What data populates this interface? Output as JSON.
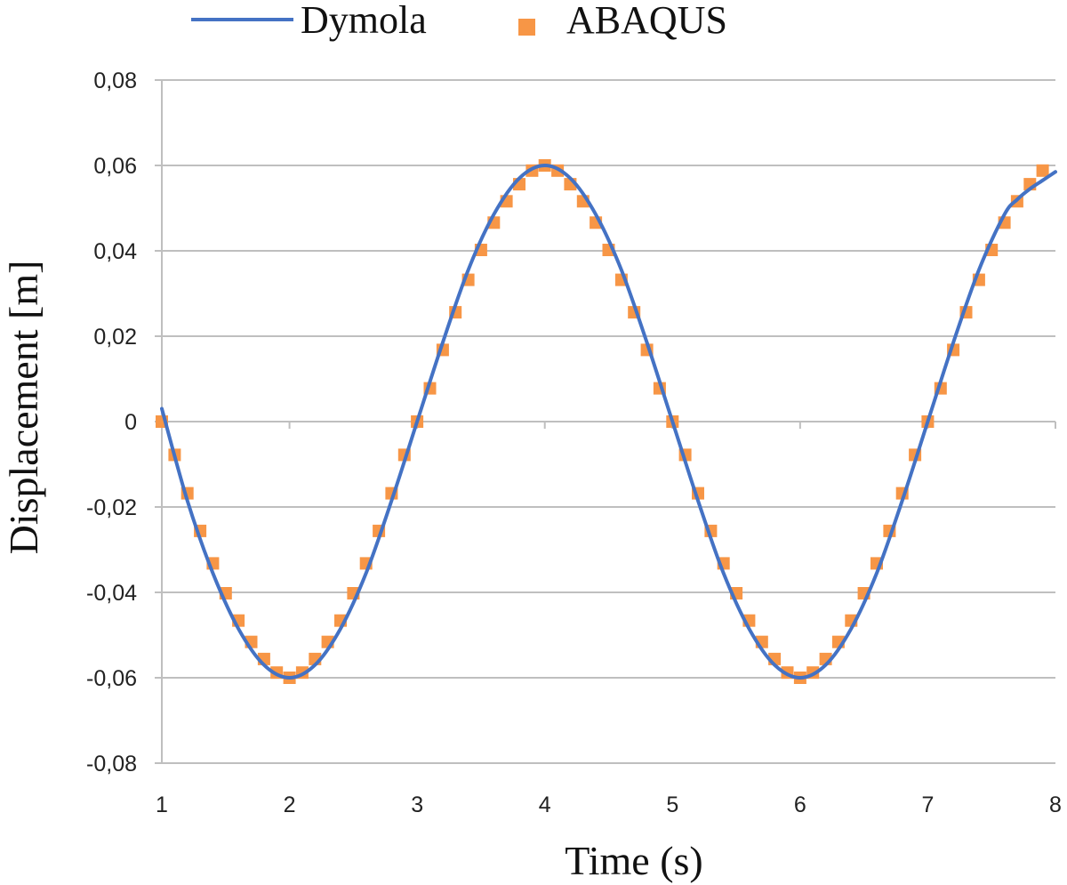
{
  "chart_data": {
    "type": "line",
    "title": "",
    "xlabel": "Time (s)",
    "ylabel": "Displacement [m]",
    "xlim": [
      1,
      8
    ],
    "ylim": [
      -0.08,
      0.08
    ],
    "x_ticks": [
      1,
      2,
      3,
      4,
      5,
      6,
      7,
      8
    ],
    "x_tick_labels": [
      "1",
      "2",
      "3",
      "4",
      "5",
      "6",
      "7",
      "8"
    ],
    "y_ticks": [
      0.08,
      0.06,
      0.04,
      0.02,
      0,
      -0.02,
      -0.04,
      -0.06,
      -0.08
    ],
    "y_tick_labels": [
      "0,08",
      "0,06",
      "0,04",
      "0,02",
      "0",
      "-0,02",
      "-0,04",
      "-0,06",
      "-0,08"
    ],
    "grid": "horizontal",
    "legend_position": "top",
    "series": [
      {
        "name": "Dymola",
        "kind": "line",
        "color": "#4472C4",
        "x": [
          1.0,
          1.2,
          1.4,
          1.6,
          1.8,
          2.0,
          2.2,
          2.4,
          2.6,
          2.8,
          3.0,
          3.2,
          3.4,
          3.6,
          3.8,
          4.0,
          4.2,
          4.4,
          4.6,
          4.8,
          5.0,
          5.2,
          5.4,
          5.6,
          5.8,
          6.0,
          6.2,
          6.4,
          6.6,
          6.8,
          7.0,
          7.2,
          7.4,
          7.6,
          7.7,
          7.8,
          7.9,
          8.0
        ],
        "y": [
          0.003,
          -0.0185,
          -0.0355,
          -0.0485,
          -0.057,
          -0.06,
          -0.057,
          -0.0485,
          -0.0355,
          -0.0185,
          0.0,
          0.0185,
          0.0355,
          0.0485,
          0.057,
          0.06,
          0.057,
          0.0485,
          0.0355,
          0.0185,
          0.0,
          -0.0185,
          -0.0355,
          -0.0485,
          -0.057,
          -0.06,
          -0.057,
          -0.0485,
          -0.0355,
          -0.0185,
          0.0,
          0.0185,
          0.0355,
          0.0485,
          0.052,
          0.0545,
          0.0565,
          0.0585
        ]
      },
      {
        "name": "ABAQUS",
        "kind": "scatter",
        "color": "#F79646",
        "x": [
          1.0,
          1.1,
          1.2,
          1.3,
          1.4,
          1.5,
          1.6,
          1.7,
          1.8,
          1.9,
          2.0,
          2.1,
          2.2,
          2.3,
          2.4,
          2.5,
          2.6,
          2.7,
          2.8,
          2.9,
          3.0,
          3.1,
          3.2,
          3.3,
          3.4,
          3.5,
          3.6,
          3.7,
          3.8,
          3.9,
          4.0,
          4.1,
          4.2,
          4.3,
          4.4,
          4.5,
          4.6,
          4.7,
          4.8,
          4.9,
          5.0,
          5.1,
          5.2,
          5.3,
          5.4,
          5.5,
          5.6,
          5.7,
          5.8,
          5.9,
          6.0,
          6.1,
          6.2,
          6.3,
          6.4,
          6.5,
          6.6,
          6.7,
          6.8,
          6.9,
          7.0,
          7.1,
          7.2,
          7.3,
          7.4,
          7.5,
          7.6,
          7.7,
          7.8,
          7.9
        ],
        "y": [
          0.0,
          -0.0078,
          -0.0168,
          -0.0256,
          -0.0332,
          -0.0402,
          -0.0466,
          -0.0516,
          -0.0556,
          -0.0588,
          -0.06,
          -0.0588,
          -0.0556,
          -0.0516,
          -0.0466,
          -0.0402,
          -0.0332,
          -0.0256,
          -0.0168,
          -0.0078,
          0.0,
          0.0078,
          0.0168,
          0.0256,
          0.0332,
          0.0402,
          0.0466,
          0.0516,
          0.0556,
          0.0588,
          0.06,
          0.0588,
          0.0556,
          0.0516,
          0.0466,
          0.0402,
          0.0332,
          0.0256,
          0.0168,
          0.0078,
          0.0,
          -0.0078,
          -0.0168,
          -0.0256,
          -0.0332,
          -0.0402,
          -0.0466,
          -0.0516,
          -0.0556,
          -0.0588,
          -0.06,
          -0.0588,
          -0.0556,
          -0.0516,
          -0.0466,
          -0.0402,
          -0.0332,
          -0.0256,
          -0.0168,
          -0.0078,
          0.0,
          0.0078,
          0.0168,
          0.0256,
          0.0332,
          0.0402,
          0.0466,
          0.0516,
          0.0556,
          0.0588
        ]
      }
    ]
  }
}
